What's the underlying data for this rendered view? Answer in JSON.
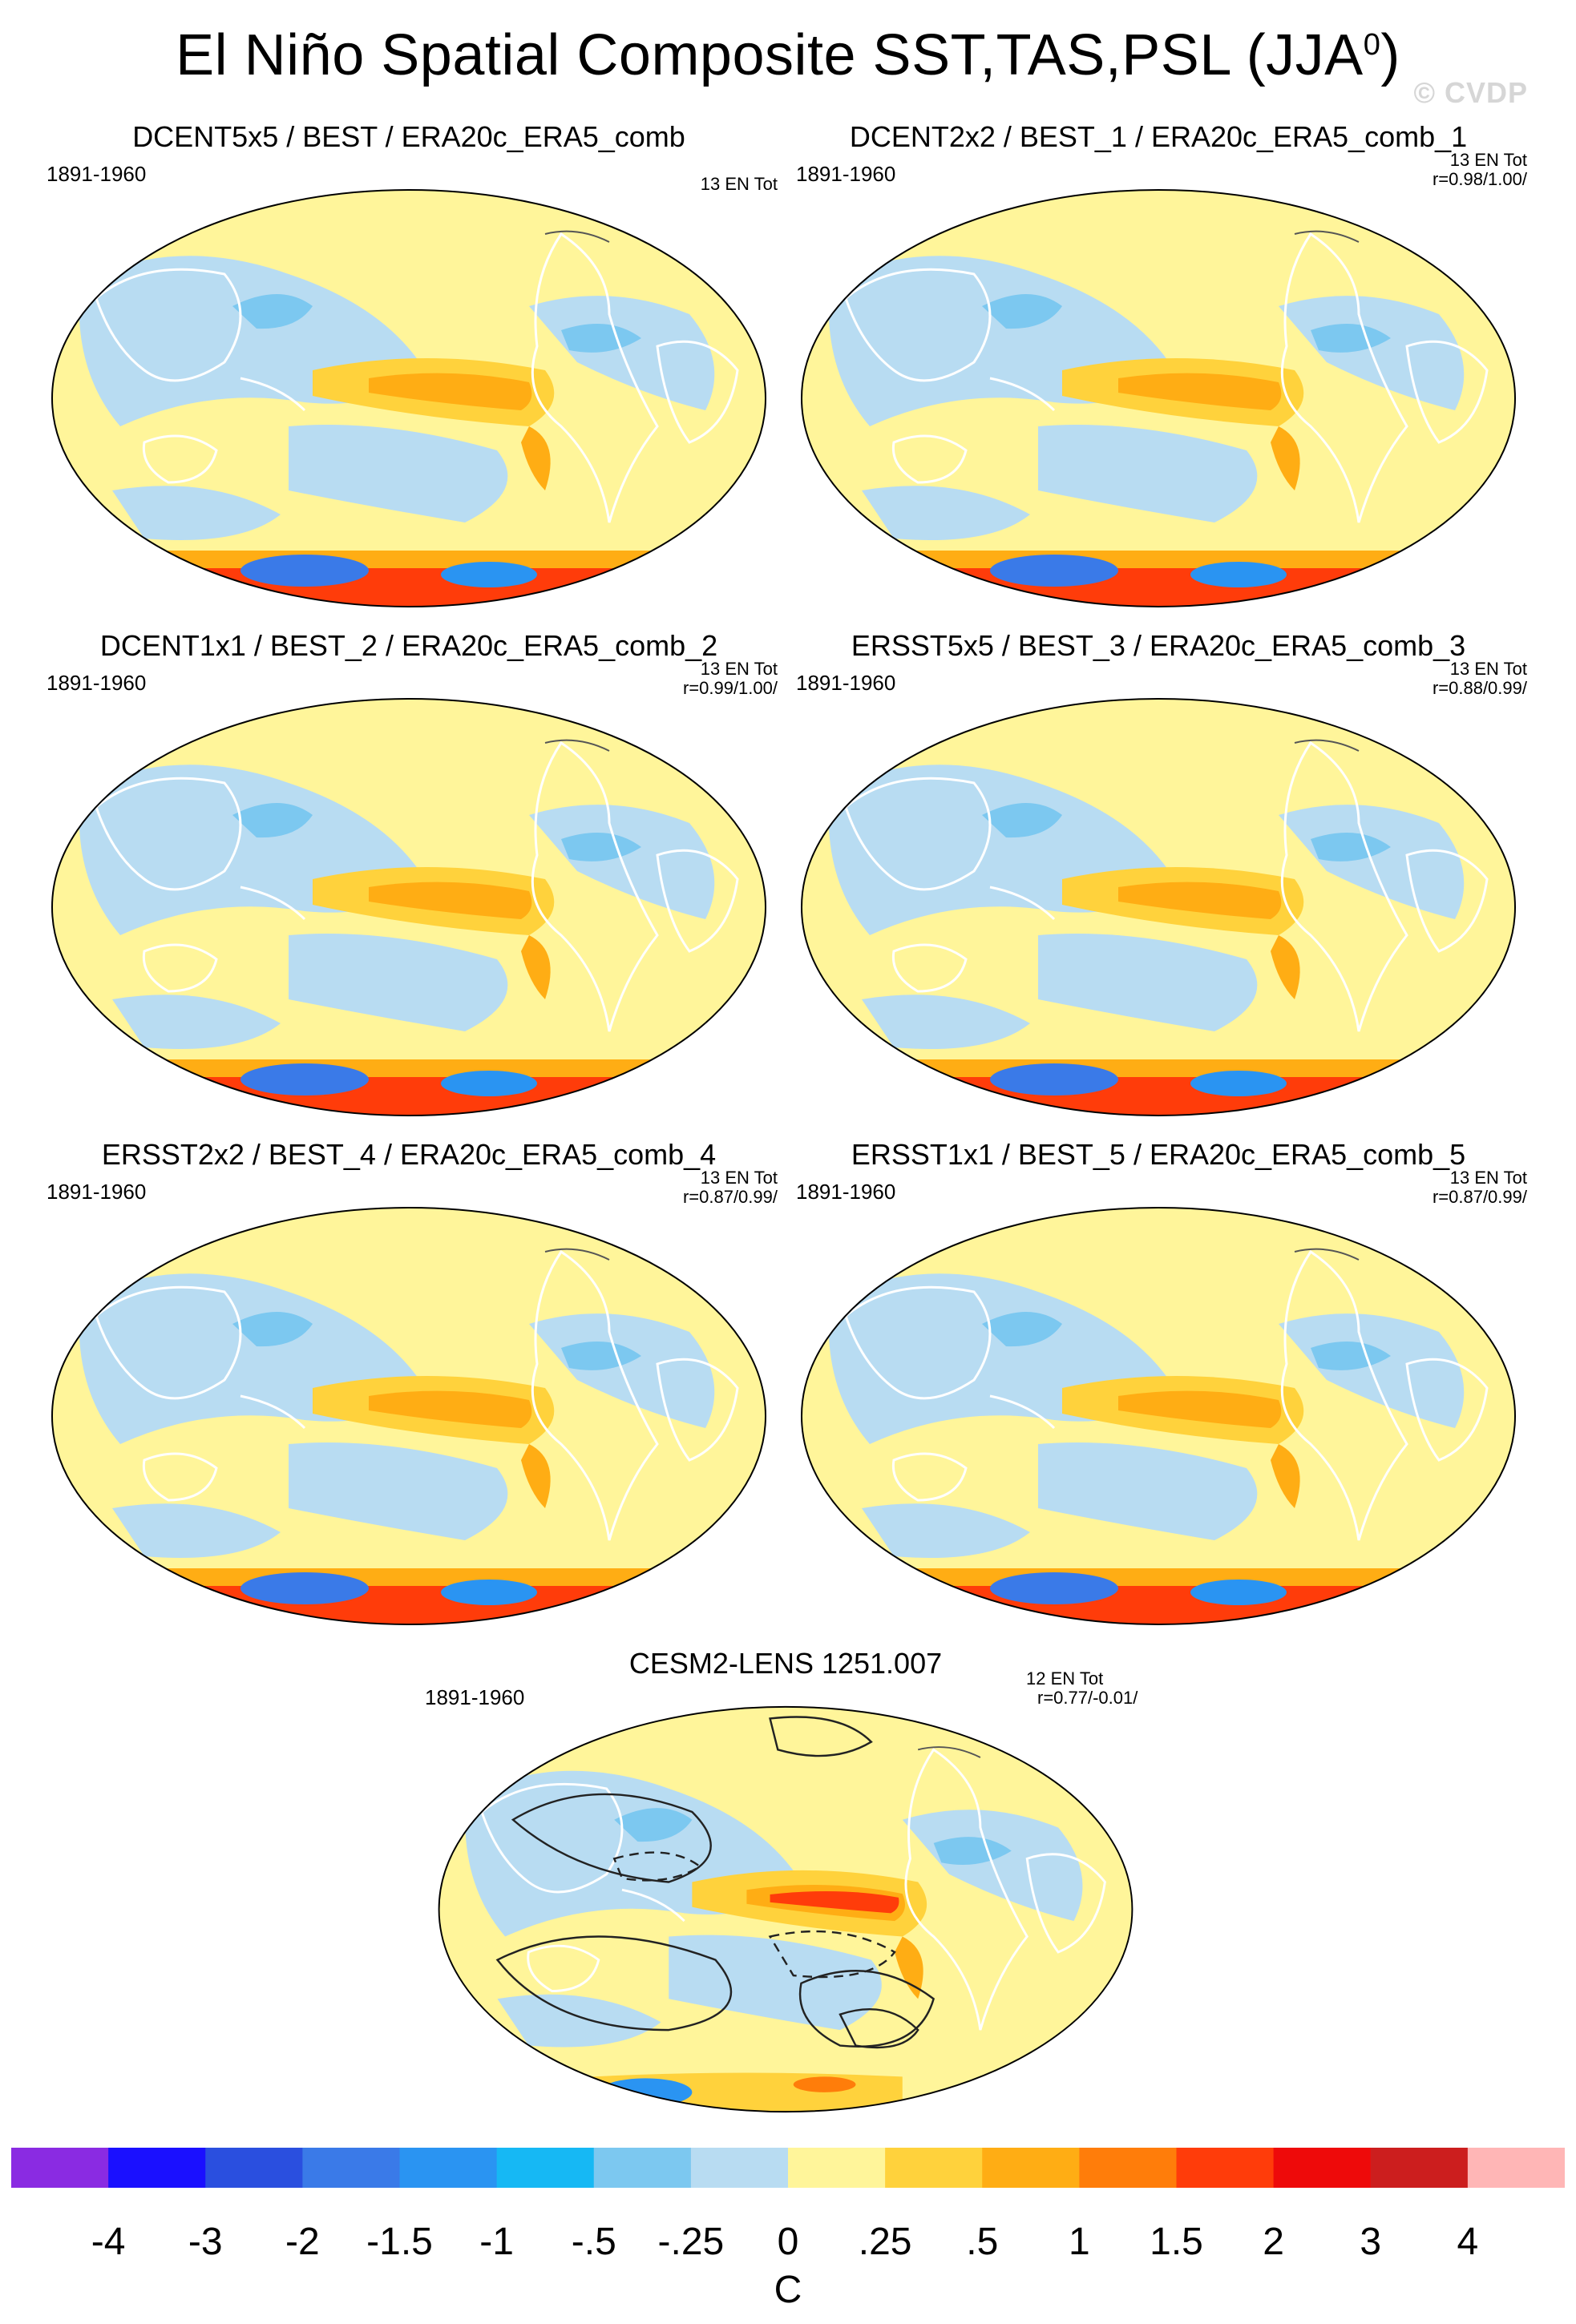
{
  "title": {
    "main": "El Niño Spatial Composite SST,TAS,PSL (JJA",
    "sup": "0",
    "close": ")"
  },
  "watermark": "© CVDP",
  "panels": [
    {
      "title": "DCENT5x5 / BEST / ERA20c_ERA5_comb",
      "period": "1891-1960",
      "count": "13 EN Tot",
      "corr": ""
    },
    {
      "title": "DCENT2x2 / BEST_1 / ERA20c_ERA5_comb_1",
      "period": "1891-1960",
      "count": "13 EN Tot",
      "corr": "r=0.98/1.00/"
    },
    {
      "title": "DCENT1x1 / BEST_2 / ERA20c_ERA5_comb_2",
      "period": "1891-1960",
      "count": "13 EN Tot",
      "corr": "r=0.99/1.00/"
    },
    {
      "title": "ERSST5x5 / BEST_3 / ERA20c_ERA5_comb_3",
      "period": "1891-1960",
      "count": "13 EN Tot",
      "corr": "r=0.88/0.99/"
    },
    {
      "title": "ERSST2x2 / BEST_4 / ERA20c_ERA5_comb_4",
      "period": "1891-1960",
      "count": "13 EN Tot",
      "corr": "r=0.87/0.99/"
    },
    {
      "title": "ERSST1x1 / BEST_5 / ERA20c_ERA5_comb_5",
      "period": "1891-1960",
      "count": "13 EN Tot",
      "corr": "r=0.87/0.99/"
    },
    {
      "title": "CESM2-LENS 1251.007",
      "period": "1891-1960",
      "count": "12 EN Tot",
      "corr": "r=0.77/-0.01/"
    }
  ],
  "colorbar": {
    "labels": [
      "-4",
      "-3",
      "-2",
      "-1.5",
      "-1",
      "-.5",
      "-.25",
      "0",
      ".25",
      ".5",
      "1",
      "1.5",
      "2",
      "3",
      "4"
    ],
    "colors": [
      "#8a2be2",
      "#1a10ff",
      "#2a4fdf",
      "#3a7ae8",
      "#2a94f2",
      "#16b8f4",
      "#7cc8f0",
      "#b8dcf2",
      "#fff59a",
      "#ffd23c",
      "#ffad14",
      "#ff7d0a",
      "#ff3c0a",
      "#ee0a0a",
      "#cc1e1e",
      "#ffb6b6"
    ],
    "units": "C"
  }
}
